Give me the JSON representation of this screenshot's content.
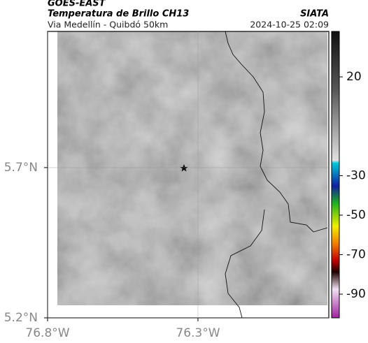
{
  "header": {
    "satellite": "GOES-EAST",
    "product": "Temperatura de Brillo CH13",
    "source": "SIATA",
    "region": "Via Medellín - Quibdó 50km",
    "datetime": "2024-10-25 02:09"
  },
  "map": {
    "xlim": [
      -76.8,
      -75.865
    ],
    "ylim": [
      5.2,
      6.153
    ],
    "xticks": [
      {
        "value": -76.8,
        "label": "76.8°W"
      },
      {
        "value": -76.3,
        "label": "76.3°W"
      }
    ],
    "yticks": [
      {
        "value": 5.2,
        "label": "5.2°N"
      },
      {
        "value": 5.7,
        "label": "5.7°N"
      }
    ],
    "grid": true
  },
  "colorbar": {
    "ylim": [
      -102,
      43
    ],
    "ticks": [
      20,
      -30,
      -50,
      -70,
      -90
    ]
  }
}
